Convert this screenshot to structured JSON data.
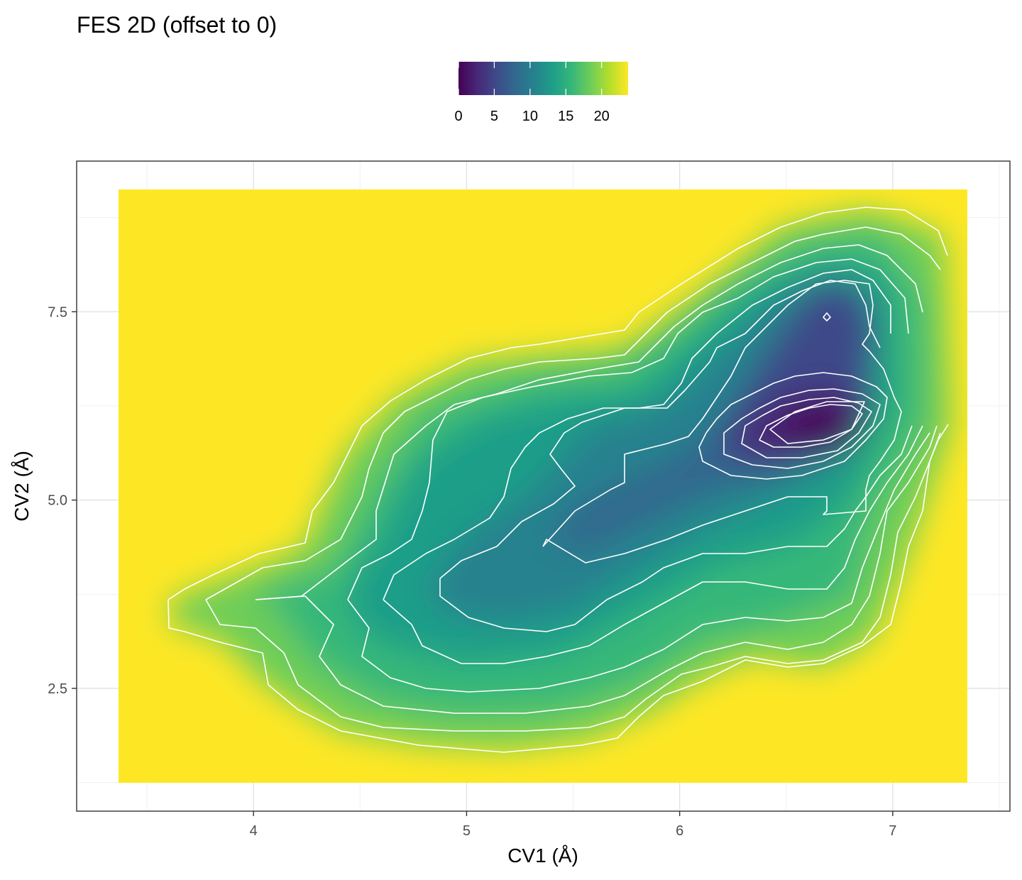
{
  "chart_data": {
    "type": "heatmap",
    "title": "FES 2D (offset to 0)",
    "xlabel": "CV1 (Å)",
    "ylabel": "CV2 (Å)",
    "xlim": [
      3.17,
      7.55
    ],
    "ylim": [
      0.87,
      9.5
    ],
    "x_ticks": [
      4,
      5,
      6,
      7
    ],
    "x_tick_labels": [
      "4",
      "5",
      "6",
      "7"
    ],
    "y_ticks": [
      2.5,
      5.0,
      7.5
    ],
    "y_tick_labels": [
      "2.5",
      "5.0",
      "7.5"
    ],
    "grid": true,
    "legend": {
      "position": "top",
      "type": "colorbar",
      "ticks": [
        0,
        5,
        10,
        15,
        20
      ],
      "tick_labels": [
        "0",
        "5",
        "10",
        "15",
        "20"
      ],
      "range": [
        0,
        23.7
      ],
      "palette": [
        "#440154",
        "#482878",
        "#3E4A89",
        "#31688E",
        "#26828E",
        "#1F9E89",
        "#35B779",
        "#6DCD59",
        "#B4DE2C",
        "#FDE725"
      ]
    },
    "data_extent": {
      "x": [
        3.38,
        7.35
      ],
      "y": [
        1.1,
        8.95
      ]
    },
    "fill_value_outside": 23.7,
    "basins": [
      {
        "x": 6.5,
        "y": 5.8,
        "depth": 0
      },
      {
        "x": 6.7,
        "y": 7.2,
        "depth": 5
      },
      {
        "x": 5.4,
        "y": 4.3,
        "depth": 10
      },
      {
        "x": 4.05,
        "y": 3.55,
        "depth": 18
      }
    ]
  }
}
